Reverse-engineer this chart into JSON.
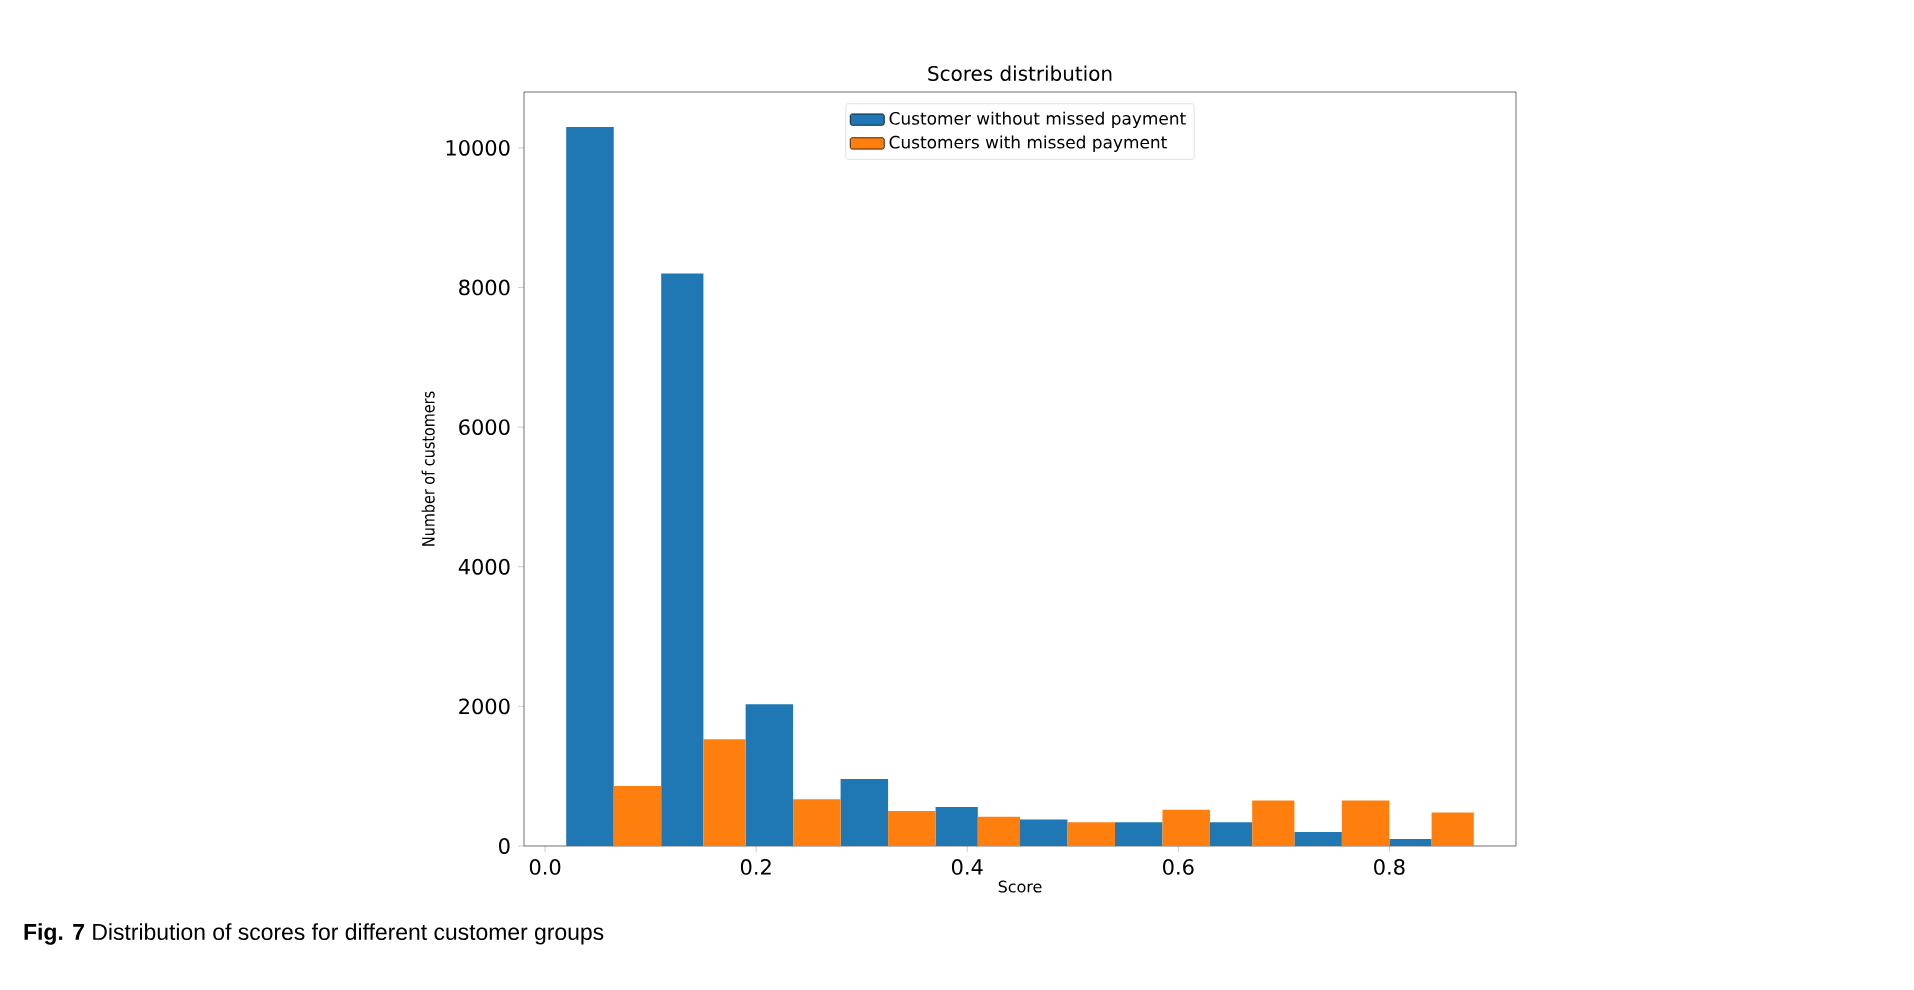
{
  "chart_data": {
    "type": "histogram",
    "title": "Scores distribution",
    "xlabel": "Score",
    "ylabel": "Number of customers",
    "bins": [
      0.02,
      0.11,
      0.19,
      0.28,
      0.37,
      0.45,
      0.54,
      0.63,
      0.71,
      0.8,
      0.88
    ],
    "series": [
      {
        "name": "Customer without missed payment",
        "color": "#1f77b4",
        "values": [
          10300,
          8200,
          2030,
          960,
          560,
          380,
          340,
          340,
          200,
          100
        ]
      },
      {
        "name": "Customers with missed payment",
        "color": "#ff7f0e",
        "values": [
          860,
          1530,
          670,
          500,
          420,
          340,
          520,
          650,
          650,
          480
        ]
      }
    ],
    "xlim": [
      -0.02,
      0.92
    ],
    "ylim": [
      0,
      10800
    ],
    "xticks": [
      {
        "value": 0,
        "label": "0.0"
      },
      {
        "value": 0.2,
        "label": "0.2"
      },
      {
        "value": 0.4,
        "label": "0.4"
      },
      {
        "value": 0.6,
        "label": "0.6"
      },
      {
        "value": 0.8,
        "label": "0.8"
      }
    ],
    "yticks": [
      0,
      2000,
      4000,
      6000,
      8000,
      10000
    ],
    "grid": false,
    "legend": "top",
    "annotations": [
      "**Fig. 7** Distribution of scores for different customer groups"
    ]
  }
}
